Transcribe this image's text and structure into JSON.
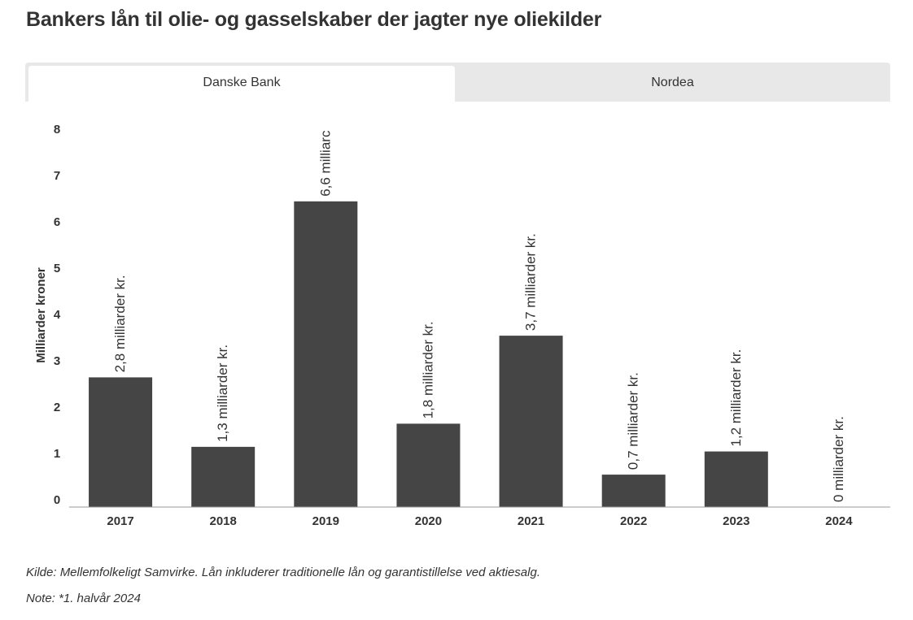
{
  "title": "Bankers lån til olie- og gasselskaber der jagter nye oliekilder",
  "tabs": [
    {
      "label": "Danske Bank",
      "active": true
    },
    {
      "label": "Nordea",
      "active": false
    }
  ],
  "chart_data": {
    "type": "bar",
    "title": "",
    "xlabel": "",
    "ylabel": "Milliarder kroner",
    "ylim": [
      0,
      8
    ],
    "yticks": [
      0,
      1,
      2,
      3,
      4,
      5,
      6,
      7,
      8
    ],
    "categories": [
      "2017",
      "2018",
      "2019",
      "2020",
      "2021",
      "2022",
      "2023",
      "2024"
    ],
    "values": [
      2.8,
      1.3,
      6.6,
      1.8,
      3.7,
      0.7,
      1.2,
      0
    ],
    "data_labels": [
      "2,8 milliarder kr.",
      "1,3 milliarder kr.",
      "6,6 milliarc",
      "1,8 milliarder kr.",
      "3,7 milliarder kr.",
      "0,7 milliarder kr.",
      "1,2 milliarder kr.",
      "0 milliarder kr."
    ],
    "bar_color": "#454545",
    "grid": false
  },
  "footer": {
    "source": "Kilde: Mellemfolkeligt Samvirke. Lån inkluderer traditionelle lån og garantistillelse ved aktiesalg.",
    "note": "Note: *1. halvår 2024"
  }
}
